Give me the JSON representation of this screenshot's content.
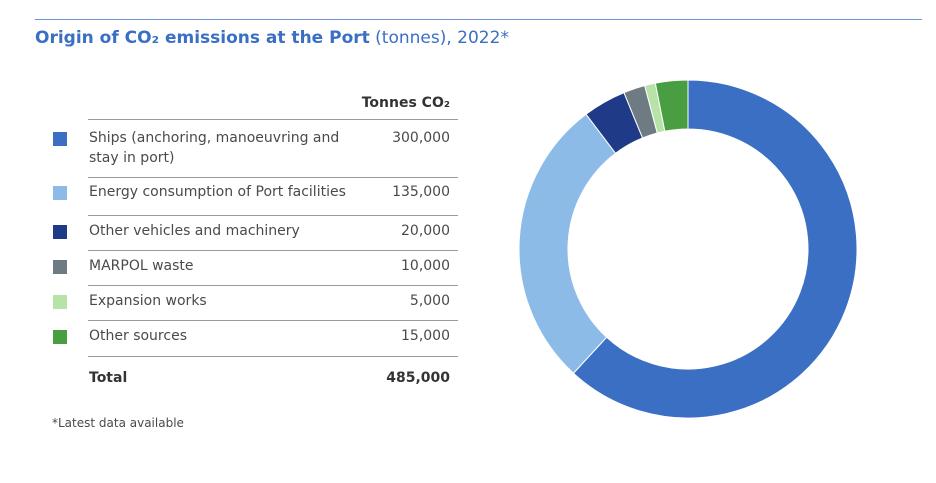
{
  "chart_data": {
    "type": "donut",
    "title": "Origin of CO₂ emissions at the Port",
    "title_suffix": "(tonnes), 2022*",
    "column_header": "Tonnes CO₂",
    "categories": [
      "Ships (anchoring, manoeuvring and stay in port)",
      "Energy consumption of Port facilities",
      "Other vehicles and machinery",
      "MARPOL waste",
      "Expansion works",
      "Other sources"
    ],
    "values": [
      300000,
      135000,
      20000,
      10000,
      5000,
      15000
    ],
    "value_labels": [
      "300,000",
      "135,000",
      "20,000",
      "10,000",
      "5,000",
      "15,000"
    ],
    "colors": [
      "#3a6fc4",
      "#8dbbe8",
      "#1f3a87",
      "#6f7b82",
      "#b8e3a8",
      "#4a9e42"
    ],
    "total_label": "Total",
    "total": {
      "value": 485000,
      "label": "485,000"
    },
    "footnote": "*Latest data available"
  }
}
